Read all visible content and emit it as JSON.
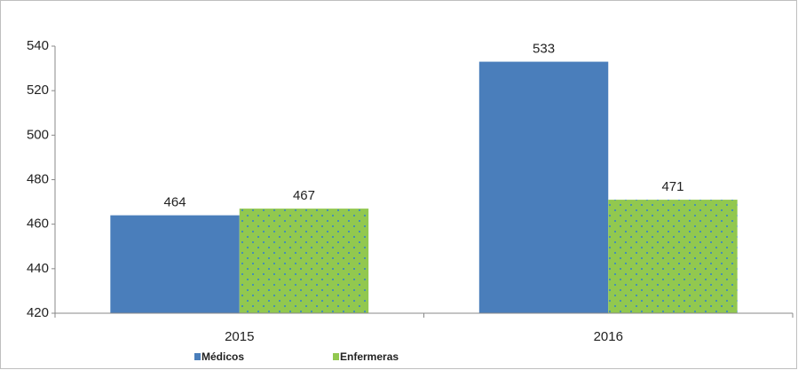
{
  "chart_data": {
    "type": "bar",
    "categories": [
      "2015",
      "2016"
    ],
    "series": [
      {
        "name": "Médicos",
        "color": "#4a7ebb",
        "values": [
          464,
          533
        ]
      },
      {
        "name": "Enfermeras",
        "color": "#92c84f",
        "values": [
          467,
          471
        ]
      }
    ],
    "ylim": [
      420,
      540
    ],
    "yticks": [
      420,
      440,
      460,
      480,
      500,
      520,
      540
    ],
    "grid": false,
    "legend": "bottom"
  }
}
